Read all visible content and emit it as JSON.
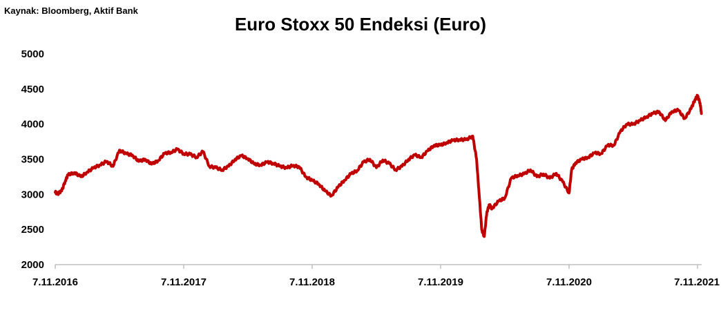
{
  "source_note": "Kaynak: Bloomberg, Aktif Bank",
  "colors": {
    "line": "#c00000",
    "axis": "#bfbfbf",
    "text": "#000000"
  },
  "chart_data": {
    "type": "line",
    "title": "Euro Stoxx 50 Endeksi (Euro)",
    "xlabel": "",
    "ylabel": "",
    "ylim": [
      2000,
      5000
    ],
    "y_ticks": [
      2000,
      2500,
      3000,
      3500,
      4000,
      4500,
      5000
    ],
    "x_ticks": [
      "7.11.2016",
      "7.11.2017",
      "7.11.2018",
      "7.11.2019",
      "7.11.2020",
      "7.11.2021"
    ],
    "grid": false,
    "series": [
      {
        "values_x_unit": "years since 7.11.2016",
        "x": [
          0.0,
          0.02,
          0.05,
          0.08,
          0.1,
          0.15,
          0.2,
          0.25,
          0.3,
          0.35,
          0.4,
          0.45,
          0.5,
          0.55,
          0.6,
          0.65,
          0.7,
          0.75,
          0.8,
          0.85,
          0.9,
          0.95,
          1.0,
          1.05,
          1.1,
          1.15,
          1.2,
          1.25,
          1.3,
          1.35,
          1.4,
          1.45,
          1.5,
          1.55,
          1.6,
          1.65,
          1.7,
          1.75,
          1.8,
          1.85,
          1.9,
          1.95,
          2.0,
          2.05,
          2.1,
          2.15,
          2.2,
          2.25,
          2.3,
          2.35,
          2.4,
          2.45,
          2.5,
          2.55,
          2.6,
          2.65,
          2.7,
          2.75,
          2.8,
          2.85,
          2.9,
          2.95,
          3.0,
          3.05,
          3.1,
          3.15,
          3.2,
          3.25,
          3.28,
          3.3,
          3.32,
          3.34,
          3.36,
          3.38,
          3.4,
          3.45,
          3.5,
          3.55,
          3.6,
          3.65,
          3.7,
          3.75,
          3.8,
          3.85,
          3.9,
          3.95,
          4.0,
          4.02,
          4.05,
          4.1,
          4.15,
          4.2,
          4.25,
          4.3,
          4.35,
          4.4,
          4.45,
          4.5,
          4.55,
          4.6,
          4.65,
          4.7,
          4.75,
          4.8,
          4.85,
          4.9,
          4.95,
          4.98,
          5.0,
          5.02,
          5.03
        ],
        "y": [
          3030,
          3010,
          3050,
          3200,
          3280,
          3310,
          3250,
          3320,
          3380,
          3420,
          3470,
          3400,
          3630,
          3580,
          3560,
          3470,
          3500,
          3430,
          3480,
          3580,
          3600,
          3640,
          3580,
          3570,
          3530,
          3610,
          3400,
          3380,
          3350,
          3400,
          3500,
          3550,
          3510,
          3430,
          3420,
          3460,
          3440,
          3400,
          3380,
          3410,
          3390,
          3250,
          3200,
          3150,
          3050,
          2980,
          3100,
          3200,
          3290,
          3340,
          3460,
          3500,
          3380,
          3490,
          3440,
          3350,
          3400,
          3500,
          3560,
          3530,
          3620,
          3700,
          3700,
          3740,
          3770,
          3780,
          3780,
          3830,
          3500,
          3000,
          2500,
          2400,
          2750,
          2850,
          2800,
          2900,
          2950,
          3230,
          3270,
          3290,
          3350,
          3250,
          3290,
          3230,
          3300,
          3180,
          3020,
          3350,
          3450,
          3500,
          3530,
          3590,
          3580,
          3700,
          3700,
          3900,
          4000,
          4000,
          4050,
          4100,
          4150,
          4180,
          4050,
          4180,
          4200,
          4080,
          4220,
          4350,
          4400,
          4300,
          4150
        ]
      }
    ]
  }
}
